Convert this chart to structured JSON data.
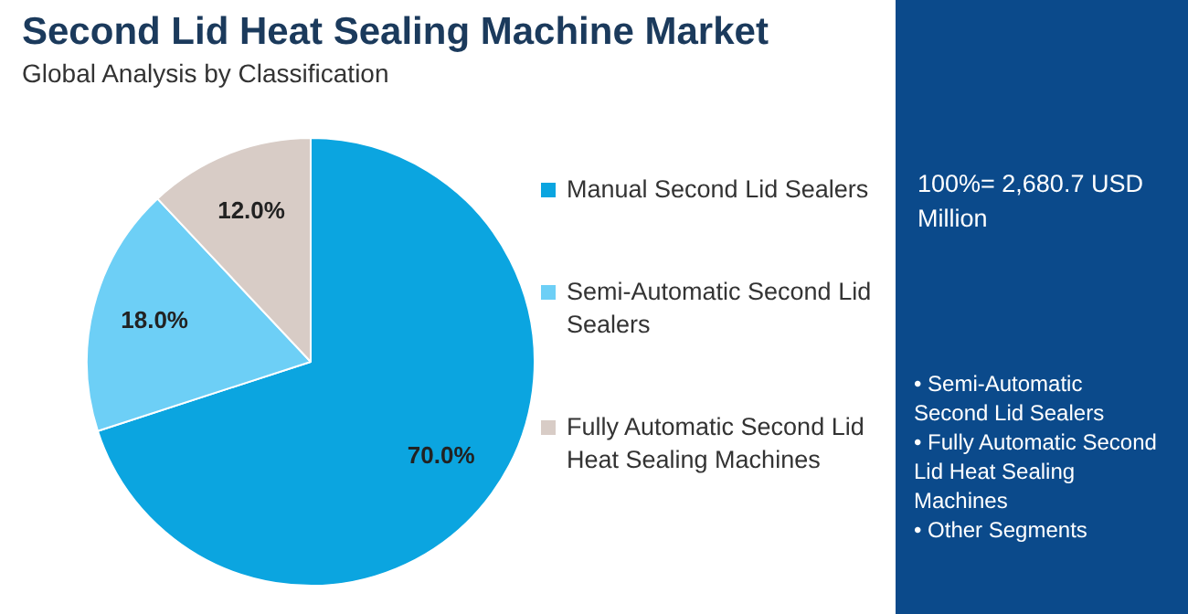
{
  "chart_data": {
    "type": "pie",
    "title": "Second Lid Heat Sealing Machine Market",
    "subtitle": "Global Analysis by Classification",
    "categories": [
      "Manual Second Lid Sealers",
      "Semi-Automatic Second Lid Sealers",
      "Fully Automatic Second Lid Heat Sealing Machines"
    ],
    "values": [
      70.0,
      18.0,
      12.0
    ],
    "colors": [
      "#0ba5e0",
      "#6dcff6",
      "#d8ccc6"
    ],
    "value_labels": [
      "70.0%",
      "18.0%",
      "12.0%"
    ],
    "legend": "right",
    "annotations": [
      "100%= 2,680.7 USD Million",
      "• Semi-Automatic Second Lid Sealers",
      "• Fully Automatic Second Lid Heat Sealing Machines",
      "• Other Segments"
    ]
  }
}
